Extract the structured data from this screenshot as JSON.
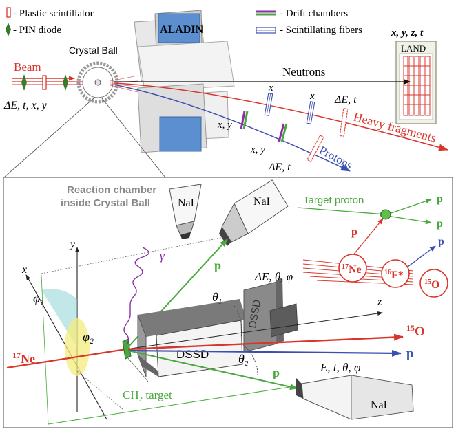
{
  "legend": {
    "plastic": "- Plastic scintillator",
    "pin": "- PIN diode",
    "drift": "- Drift chambers",
    "fibers": "- Scintillating fibers"
  },
  "labels": {
    "crystal_ball": "Crystal Ball",
    "aladin": "ALADIN",
    "land": "LAND",
    "land_coords": "x, y, z, t",
    "beam": "Beam",
    "beam_vars": "ΔE, t, x, y",
    "neutrons": "Neutrons",
    "x1": "x",
    "x2": "x",
    "xy1": "x, y",
    "xy2": "x, y",
    "det_heavy": "ΔE, t",
    "heavy_fragments": "Heavy fragments",
    "protons": "Protons",
    "det_protons": "ΔE, t"
  },
  "bottom": {
    "chamber_title_1": "Reaction chamber",
    "chamber_title_2": "inside Crystal Ball",
    "nai_1": "NaI",
    "nai_2": "NaI",
    "nai_3": "NaI",
    "gamma": "γ",
    "p_up": "p",
    "p_down": "p",
    "theta1": "θ",
    "theta1_sub": "1",
    "theta2": "θ",
    "theta2_sub": "2",
    "dssd_vars": "ΔE, θ, φ",
    "dssd_front": "DSSD",
    "dssd_back": "DSSD",
    "z": "z",
    "y": "y",
    "x": "x",
    "phi1": "φ",
    "phi1_sub": "1",
    "phi2": "φ",
    "phi2_sub": "2",
    "ne17_mass": "17",
    "ne17": "Ne",
    "o15_mass": "15",
    "o15": "O",
    "p_out": "p",
    "target": "CH",
    "target_sub": "2",
    "target_tail": " target",
    "nai_vars": "E, t, θ, φ"
  },
  "inset": {
    "target_proton": "Target proton",
    "p1": "p",
    "p2": "p",
    "p3": "p",
    "p4": "p",
    "ne_mass": "17",
    "ne": "Ne",
    "f_mass": "16",
    "f": "F*",
    "o_mass": "15",
    "o": "O"
  },
  "colors": {
    "red": "#d9352b",
    "green": "#4aa83e",
    "blue": "#3b4fb0",
    "purple": "#8a2fa8",
    "aladin_blue": "#5b8fd0"
  }
}
